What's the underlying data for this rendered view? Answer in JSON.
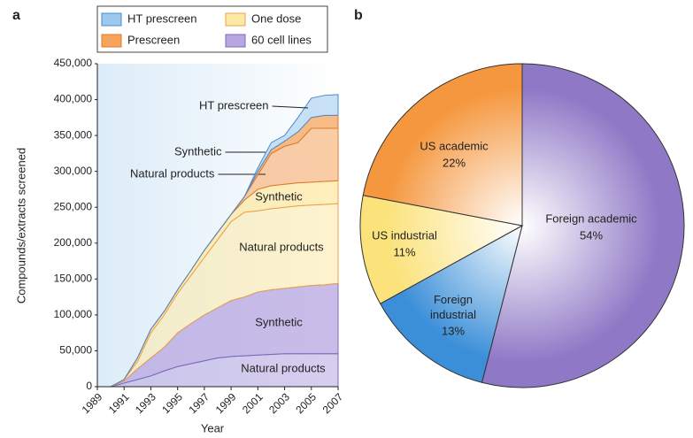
{
  "chart_data": [
    {
      "type": "stacked-area",
      "panel": "a",
      "x_label": "Year",
      "y_label": "Compounds/extracts screened",
      "x": [
        1989,
        1990,
        1991,
        1992,
        1993,
        1994,
        1995,
        1996,
        1997,
        1998,
        1999,
        2000,
        2001,
        2002,
        2003,
        2004,
        2005,
        2006,
        2007
      ],
      "xlim": [
        1989,
        2007
      ],
      "xticks": [
        1989,
        1991,
        1993,
        1995,
        1997,
        1999,
        2001,
        2003,
        2005,
        2007
      ],
      "ylim": [
        0,
        450000
      ],
      "yticks": [
        0,
        {
          "value": 50000,
          "label": "50,000"
        },
        {
          "value": 100000,
          "label": "100,000"
        },
        {
          "value": 150000,
          "label": "150,000"
        },
        {
          "value": 200000,
          "label": "200,000"
        },
        {
          "value": 250000,
          "label": "250,000"
        },
        {
          "value": 300000,
          "label": "300,000"
        },
        {
          "value": 350000,
          "label": "350,000"
        },
        {
          "value": 400000,
          "label": "400,000"
        },
        {
          "value": 450000,
          "label": "450,000"
        }
      ],
      "groups": [
        {
          "name": "60 cell lines",
          "color": "#b7a6e0",
          "line_color": "#7c68b8",
          "series": [
            {
              "name": "Natural products",
              "values": [
                0,
                0,
                5000,
                10000,
                15000,
                22000,
                28000,
                32000,
                36000,
                40000,
                42000,
                43000,
                44000,
                45000,
                46000,
                46000,
                46000,
                46000,
                46000
              ]
            },
            {
              "name": "Synthetic",
              "values": [
                0,
                0,
                3000,
                15000,
                25000,
                33000,
                47000,
                56000,
                64000,
                70000,
                78000,
                82000,
                88000,
                90000,
                91000,
                93000,
                95000,
                96000,
                98000
              ]
            }
          ]
        },
        {
          "name": "One dose",
          "color": "#fde9a6",
          "line_color": "#eea04a",
          "series": [
            {
              "name": "Natural products",
              "values": [
                0,
                0,
                2000,
                10000,
                35000,
                45000,
                55000,
                67000,
                80000,
                95000,
                110000,
                118000,
                113000,
                113000,
                113000,
                113000,
                112000,
                112000,
                111000
              ]
            },
            {
              "name": "Synthetic",
              "values": [
                0,
                0,
                0,
                5000,
                5000,
                5000,
                5000,
                7000,
                10000,
                10000,
                10000,
                17000,
                30000,
                32000,
                32000,
                32000,
                32000,
                32000,
                32000
              ]
            }
          ]
        },
        {
          "name": "Prescreen",
          "color": "#f6a45c",
          "line_color": "#e07a2a",
          "series": [
            {
              "name": "Natural products",
              "values": [
                0,
                0,
                0,
                0,
                0,
                0,
                0,
                0,
                0,
                0,
                0,
                5000,
                20000,
                45000,
                53000,
                56000,
                75000,
                74000,
                73000
              ]
            },
            {
              "name": "Synthetic",
              "values": [
                0,
                0,
                0,
                0,
                0,
                0,
                0,
                0,
                0,
                0,
                0,
                0,
                5000,
                5000,
                7000,
                15000,
                15000,
                18000,
                18000
              ]
            }
          ]
        },
        {
          "name": "HT prescreen",
          "color": "#9cc8ee",
          "line_color": "#4a8ccc",
          "series": [
            {
              "name": "HT prescreen",
              "values": [
                0,
                0,
                0,
                0,
                0,
                0,
                0,
                0,
                0,
                0,
                0,
                0,
                5000,
                10000,
                8000,
                20000,
                27000,
                28000,
                29000
              ]
            }
          ]
        }
      ]
    },
    {
      "type": "pie",
      "panel": "b",
      "categories": [
        "Foreign academic",
        "Foreign industrial",
        "US industrial",
        "US academic"
      ],
      "values": [
        54,
        13,
        11,
        22
      ],
      "value_labels": [
        "54%",
        "13%",
        "11%",
        "22%"
      ],
      "colors": [
        "#8f78c6",
        "#3b8fd8",
        "#fbe27a",
        "#f5973e"
      ]
    }
  ]
}
